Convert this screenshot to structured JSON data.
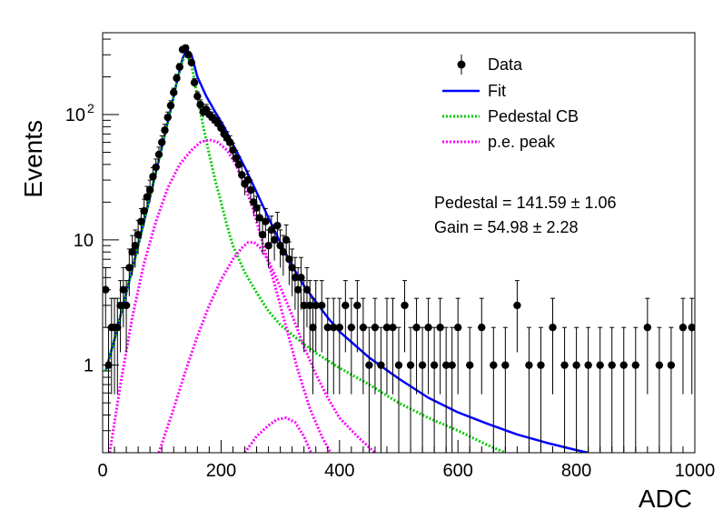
{
  "chart_data": {
    "type": "scatter",
    "xlabel": "ADC",
    "ylabel": "Events",
    "xlim": [
      0,
      1000
    ],
    "ylim": [
      0.2,
      450
    ],
    "yscale": "log",
    "grid": false,
    "legend_position": "top-right",
    "x_ticks": [
      {
        "value": 0,
        "label": "0"
      },
      {
        "value": 200,
        "label": "200"
      },
      {
        "value": 400,
        "label": "400"
      },
      {
        "value": 600,
        "label": "600"
      },
      {
        "value": 800,
        "label": "800"
      },
      {
        "value": 1000,
        "label": "1000"
      }
    ],
    "y_ticks": [
      {
        "value": 1,
        "label": "1"
      },
      {
        "value": 10,
        "label": "10"
      },
      {
        "value": 100,
        "label": "10",
        "exponent": "2"
      }
    ],
    "legend": [
      {
        "label": "Data",
        "style": "marker",
        "color": "#000000"
      },
      {
        "label": "Fit",
        "style": "solid",
        "color": "#0000ff"
      },
      {
        "label": "Pedestal CB",
        "style": "dotted",
        "color": "#00cc00"
      },
      {
        "label": "p.e. peak",
        "style": "dotted",
        "color": "#ff00ff"
      }
    ],
    "annotations": [
      "Pedestal = 141.59 ± 1.06",
      "Gain = 54.98 ± 2.28"
    ],
    "series": [
      {
        "name": "Data",
        "kind": "points",
        "color": "#000000",
        "points": [
          [
            5,
            4
          ],
          [
            10,
            1
          ],
          [
            15,
            2
          ],
          [
            20,
            2
          ],
          [
            25,
            2
          ],
          [
            30,
            3
          ],
          [
            35,
            4
          ],
          [
            40,
            3
          ],
          [
            45,
            6
          ],
          [
            50,
            8
          ],
          [
            55,
            9
          ],
          [
            60,
            11
          ],
          [
            65,
            14
          ],
          [
            70,
            17
          ],
          [
            75,
            22
          ],
          [
            80,
            25
          ],
          [
            85,
            32
          ],
          [
            90,
            38
          ],
          [
            95,
            48
          ],
          [
            100,
            60
          ],
          [
            105,
            75
          ],
          [
            110,
            95
          ],
          [
            115,
            118
          ],
          [
            120,
            150
          ],
          [
            125,
            195
          ],
          [
            130,
            240
          ],
          [
            135,
            330
          ],
          [
            140,
            340
          ],
          [
            145,
            300
          ],
          [
            150,
            260
          ],
          [
            155,
            180
          ],
          [
            160,
            140
          ],
          [
            165,
            120
          ],
          [
            170,
            105
          ],
          [
            175,
            110
          ],
          [
            180,
            100
          ],
          [
            185,
            95
          ],
          [
            190,
            90
          ],
          [
            195,
            85
          ],
          [
            200,
            78
          ],
          [
            205,
            70
          ],
          [
            210,
            65
          ],
          [
            215,
            60
          ],
          [
            220,
            52
          ],
          [
            225,
            45
          ],
          [
            230,
            40
          ],
          [
            235,
            33
          ],
          [
            240,
            28
          ],
          [
            245,
            30
          ],
          [
            250,
            25
          ],
          [
            255,
            20
          ],
          [
            260,
            18
          ],
          [
            265,
            15
          ],
          [
            270,
            11
          ],
          [
            275,
            14
          ],
          [
            280,
            9
          ],
          [
            285,
            12
          ],
          [
            290,
            10
          ],
          [
            295,
            13
          ],
          [
            300,
            9
          ],
          [
            305,
            8
          ],
          [
            310,
            10
          ],
          [
            315,
            7
          ],
          [
            320,
            6
          ],
          [
            325,
            5
          ],
          [
            330,
            4
          ],
          [
            335,
            5
          ],
          [
            340,
            3
          ],
          [
            345,
            4
          ],
          [
            350,
            3
          ],
          [
            355,
            2
          ],
          [
            360,
            3
          ],
          [
            370,
            3
          ],
          [
            380,
            2
          ],
          [
            390,
            2
          ],
          [
            400,
            2
          ],
          [
            410,
            3
          ],
          [
            420,
            2
          ],
          [
            430,
            3
          ],
          [
            440,
            2
          ],
          [
            450,
            1
          ],
          [
            460,
            2
          ],
          [
            470,
            1
          ],
          [
            480,
            2
          ],
          [
            490,
            2
          ],
          [
            500,
            1
          ],
          [
            510,
            3
          ],
          [
            520,
            1
          ],
          [
            530,
            2
          ],
          [
            540,
            1
          ],
          [
            550,
            2
          ],
          [
            560,
            1
          ],
          [
            570,
            2
          ],
          [
            580,
            1
          ],
          [
            590,
            1
          ],
          [
            600,
            2
          ],
          [
            620,
            1
          ],
          [
            640,
            2
          ],
          [
            660,
            1
          ],
          [
            680,
            1
          ],
          [
            700,
            3
          ],
          [
            720,
            1
          ],
          [
            740,
            1
          ],
          [
            760,
            2
          ],
          [
            780,
            1
          ],
          [
            800,
            1
          ],
          [
            820,
            1
          ],
          [
            840,
            1
          ],
          [
            860,
            1
          ],
          [
            880,
            1
          ],
          [
            900,
            1
          ],
          [
            920,
            2
          ],
          [
            940,
            1
          ],
          [
            960,
            1
          ],
          [
            980,
            2
          ],
          [
            995,
            2
          ]
        ]
      },
      {
        "name": "Fit",
        "kind": "line",
        "color": "#0000ff",
        "dash": "solid",
        "points": [
          [
            5,
            0.9
          ],
          [
            20,
            1.6
          ],
          [
            40,
            3.8
          ],
          [
            60,
            9.0
          ],
          [
            80,
            22
          ],
          [
            100,
            55
          ],
          [
            115,
            110
          ],
          [
            125,
            180
          ],
          [
            135,
            280
          ],
          [
            142,
            330
          ],
          [
            150,
            300
          ],
          [
            160,
            200
          ],
          [
            175,
            140
          ],
          [
            190,
            105
          ],
          [
            205,
            80
          ],
          [
            220,
            58
          ],
          [
            240,
            38
          ],
          [
            260,
            24
          ],
          [
            280,
            15
          ],
          [
            300,
            9.5
          ],
          [
            320,
            6.2
          ],
          [
            340,
            4.3
          ],
          [
            360,
            3.2
          ],
          [
            380,
            2.4
          ],
          [
            400,
            1.85
          ],
          [
            450,
            1.15
          ],
          [
            500,
            0.78
          ],
          [
            550,
            0.55
          ],
          [
            600,
            0.42
          ],
          [
            650,
            0.34
          ],
          [
            700,
            0.28
          ],
          [
            750,
            0.24
          ],
          [
            800,
            0.21
          ],
          [
            820,
            0.2
          ]
        ]
      },
      {
        "name": "Pedestal CB",
        "kind": "line",
        "color": "#00cc00",
        "dash": "dotted",
        "points": [
          [
            5,
            0.9
          ],
          [
            20,
            1.6
          ],
          [
            40,
            3.8
          ],
          [
            60,
            9.0
          ],
          [
            80,
            22
          ],
          [
            100,
            55
          ],
          [
            115,
            110
          ],
          [
            125,
            180
          ],
          [
            135,
            270
          ],
          [
            142,
            300
          ],
          [
            150,
            250
          ],
          [
            160,
            140
          ],
          [
            170,
            80
          ],
          [
            180,
            48
          ],
          [
            190,
            30
          ],
          [
            200,
            20
          ],
          [
            210,
            13
          ],
          [
            220,
            9
          ],
          [
            240,
            5.5
          ],
          [
            260,
            3.8
          ],
          [
            280,
            2.7
          ],
          [
            300,
            2.1
          ],
          [
            330,
            1.6
          ],
          [
            360,
            1.25
          ],
          [
            400,
            0.95
          ],
          [
            450,
            0.7
          ],
          [
            500,
            0.5
          ],
          [
            550,
            0.38
          ],
          [
            600,
            0.3
          ],
          [
            650,
            0.23
          ],
          [
            680,
            0.2
          ]
        ]
      },
      {
        "name": "p.e. peak",
        "kind": "line",
        "color": "#ff00ff",
        "dash": "dotted",
        "points": [
          [
            12,
            0.2
          ],
          [
            30,
            0.7
          ],
          [
            50,
            2.4
          ],
          [
            70,
            6.5
          ],
          [
            90,
            14
          ],
          [
            110,
            26
          ],
          [
            130,
            40
          ],
          [
            150,
            52
          ],
          [
            165,
            60
          ],
          [
            180,
            63
          ],
          [
            195,
            60
          ],
          [
            210,
            52
          ],
          [
            225,
            40
          ],
          [
            240,
            27
          ],
          [
            255,
            17
          ],
          [
            270,
            9.5
          ],
          [
            290,
            4.5
          ],
          [
            310,
            2.0
          ],
          [
            330,
            0.9
          ],
          [
            350,
            0.45
          ],
          [
            370,
            0.27
          ],
          [
            385,
            0.2
          ]
        ]
      },
      {
        "name": "p.e. peak",
        "kind": "line",
        "color": "#ff00ff",
        "dash": "dotted",
        "points": [
          [
            95,
            0.2
          ],
          [
            120,
            0.45
          ],
          [
            140,
            0.9
          ],
          [
            160,
            1.7
          ],
          [
            180,
            3.0
          ],
          [
            200,
            4.8
          ],
          [
            220,
            7.0
          ],
          [
            235,
            8.6
          ],
          [
            245,
            9.5
          ],
          [
            255,
            9.6
          ],
          [
            265,
            8.8
          ],
          [
            280,
            6.8
          ],
          [
            300,
            4.2
          ],
          [
            320,
            2.5
          ],
          [
            340,
            1.4
          ],
          [
            360,
            0.85
          ],
          [
            380,
            0.55
          ],
          [
            400,
            0.38
          ],
          [
            430,
            0.27
          ],
          [
            460,
            0.2
          ]
        ]
      },
      {
        "name": "p.e. peak",
        "kind": "line",
        "color": "#ff00ff",
        "dash": "dotted",
        "points": [
          [
            240,
            0.2
          ],
          [
            260,
            0.27
          ],
          [
            280,
            0.33
          ],
          [
            295,
            0.37
          ],
          [
            310,
            0.38
          ],
          [
            325,
            0.35
          ],
          [
            340,
            0.27
          ],
          [
            350,
            0.21
          ],
          [
            352,
            0.2
          ]
        ]
      }
    ]
  }
}
